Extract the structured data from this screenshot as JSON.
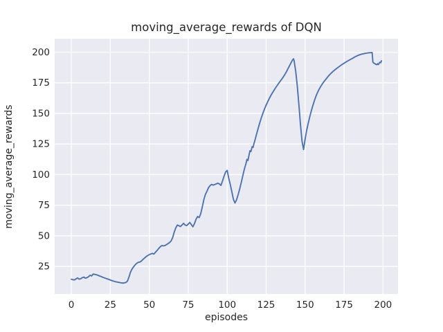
{
  "chart_data": {
    "type": "line",
    "title": "moving_average_rewards of DQN",
    "xlabel": "episodes",
    "ylabel": "moving_average_rewards",
    "xlim": [
      -10.7,
      209.6
    ],
    "ylim": [
      2.5,
      211
    ],
    "xticks": [
      0,
      25,
      50,
      75,
      100,
      125,
      150,
      175,
      200
    ],
    "yticks": [
      25,
      50,
      75,
      100,
      125,
      150,
      175,
      200
    ],
    "grid": true,
    "legend": "none",
    "style": "seaborn-darkgrid",
    "colors": {
      "line": "#4C72B0",
      "plot_bg": "#EAEAF2",
      "grid": "#FFFFFF",
      "text": "#262626",
      "figure_bg": "#FFFFFF"
    },
    "series": [
      {
        "name": "moving_average_rewards",
        "points": [
          [
            0,
            14.5
          ],
          [
            1,
            14.2
          ],
          [
            2,
            14.0
          ],
          [
            3,
            14.8
          ],
          [
            4,
            15.6
          ],
          [
            5,
            14.6
          ],
          [
            6,
            14.9
          ],
          [
            7,
            15.8
          ],
          [
            8,
            16.3
          ],
          [
            9,
            15.4
          ],
          [
            10,
            15.8
          ],
          [
            11,
            16.6
          ],
          [
            12,
            17.8
          ],
          [
            13,
            17.2
          ],
          [
            14,
            18.8
          ],
          [
            15,
            18.5
          ],
          [
            16,
            18.2
          ],
          [
            17,
            17.8
          ],
          [
            18,
            17.2
          ],
          [
            19,
            16.8
          ],
          [
            20,
            16.2
          ],
          [
            22,
            15.3
          ],
          [
            24,
            14.4
          ],
          [
            26,
            13.4
          ],
          [
            28,
            12.6
          ],
          [
            30,
            12.1
          ],
          [
            32,
            11.6
          ],
          [
            33,
            11.4
          ],
          [
            34,
            11.6
          ],
          [
            35,
            11.9
          ],
          [
            36,
            13.0
          ],
          [
            37,
            16.5
          ],
          [
            38,
            20.5
          ],
          [
            39,
            23.0
          ],
          [
            40,
            24.8
          ],
          [
            41,
            26.4
          ],
          [
            42,
            27.6
          ],
          [
            43,
            28.4
          ],
          [
            44,
            28.6
          ],
          [
            45,
            29.5
          ],
          [
            46,
            30.8
          ],
          [
            47,
            31.9
          ],
          [
            48,
            33.0
          ],
          [
            49,
            33.9
          ],
          [
            50,
            34.6
          ],
          [
            51,
            35.2
          ],
          [
            52,
            35.6
          ],
          [
            53,
            35.1
          ],
          [
            54,
            36.6
          ],
          [
            55,
            38.0
          ],
          [
            56,
            39.6
          ],
          [
            57,
            41.0
          ],
          [
            58,
            42.0
          ],
          [
            59,
            41.8
          ],
          [
            60,
            42.0
          ],
          [
            61,
            42.8
          ],
          [
            62,
            43.6
          ],
          [
            63,
            44.5
          ],
          [
            64,
            45.8
          ],
          [
            65,
            48.5
          ],
          [
            66,
            53.0
          ],
          [
            67,
            56.5
          ],
          [
            68,
            58.8
          ],
          [
            69,
            58.2
          ],
          [
            70,
            57.6
          ],
          [
            71,
            58.8
          ],
          [
            72,
            60.2
          ],
          [
            73,
            58.8
          ],
          [
            74,
            58.4
          ],
          [
            75,
            59.6
          ],
          [
            76,
            60.9
          ],
          [
            77,
            59.2
          ],
          [
            78,
            57.4
          ],
          [
            79,
            60.0
          ],
          [
            80,
            63.5
          ],
          [
            81,
            65.8
          ],
          [
            82,
            64.9
          ],
          [
            83,
            68.0
          ],
          [
            84,
            73.5
          ],
          [
            85,
            79.5
          ],
          [
            86,
            83.8
          ],
          [
            87,
            86.4
          ],
          [
            88,
            89.3
          ],
          [
            89,
            91.0
          ],
          [
            90,
            92.0
          ],
          [
            91,
            91.4
          ],
          [
            92,
            91.9
          ],
          [
            93,
            92.4
          ],
          [
            94,
            93.0
          ],
          [
            95,
            92.4
          ],
          [
            96,
            91.2
          ],
          [
            97,
            94.8
          ],
          [
            98,
            98.8
          ],
          [
            99,
            102.2
          ],
          [
            100,
            103.4
          ],
          [
            101,
            97.0
          ],
          [
            102,
            91.8
          ],
          [
            103,
            85.8
          ],
          [
            104,
            79.8
          ],
          [
            105,
            76.8
          ],
          [
            106,
            79.4
          ],
          [
            107,
            83.6
          ],
          [
            108,
            88.2
          ],
          [
            109,
            93.4
          ],
          [
            110,
            99.0
          ],
          [
            111,
            104.4
          ],
          [
            112,
            108.8
          ],
          [
            112.7,
            112.5
          ],
          [
            113.3,
            111.5
          ],
          [
            114,
            116.0
          ],
          [
            114.6,
            119.5
          ],
          [
            115.2,
            118.8
          ],
          [
            116,
            122.8
          ],
          [
            116.6,
            122.2
          ],
          [
            117,
            124.5
          ],
          [
            118,
            129.0
          ],
          [
            119,
            133.8
          ],
          [
            120,
            138.4
          ],
          [
            121,
            142.8
          ],
          [
            122,
            146.8
          ],
          [
            123,
            150.4
          ],
          [
            124,
            153.8
          ],
          [
            125,
            156.8
          ],
          [
            126,
            159.6
          ],
          [
            127,
            162.2
          ],
          [
            128,
            164.6
          ],
          [
            129,
            166.8
          ],
          [
            130,
            168.8
          ],
          [
            131,
            170.8
          ],
          [
            132,
            172.7
          ],
          [
            133,
            174.5
          ],
          [
            134,
            176.3
          ],
          [
            135,
            178.0
          ],
          [
            136,
            179.8
          ],
          [
            137,
            181.8
          ],
          [
            138,
            184.0
          ],
          [
            139,
            186.5
          ],
          [
            140,
            189.0
          ],
          [
            141,
            191.5
          ],
          [
            142,
            193.8
          ],
          [
            142.6,
            194.6
          ],
          [
            143,
            192.5
          ],
          [
            144,
            184.0
          ],
          [
            145,
            172.0
          ],
          [
            146,
            157.0
          ],
          [
            147,
            141.0
          ],
          [
            148,
            127.5
          ],
          [
            149,
            120.5
          ],
          [
            150,
            129.0
          ],
          [
            151,
            136.2
          ],
          [
            152,
            142.0
          ],
          [
            153,
            147.4
          ],
          [
            154,
            152.2
          ],
          [
            155,
            156.6
          ],
          [
            156,
            160.6
          ],
          [
            157,
            164.2
          ],
          [
            158,
            167.2
          ],
          [
            159,
            169.8
          ],
          [
            160,
            172.0
          ],
          [
            161,
            174.0
          ],
          [
            162,
            175.8
          ],
          [
            163,
            177.4
          ],
          [
            164,
            179.0
          ],
          [
            165,
            180.6
          ],
          [
            166,
            182.0
          ],
          [
            167,
            183.2
          ],
          [
            168,
            184.4
          ],
          [
            169,
            185.5
          ],
          [
            170,
            186.5
          ],
          [
            171,
            187.5
          ],
          [
            172,
            188.4
          ],
          [
            173,
            189.3
          ],
          [
            174,
            190.2
          ],
          [
            175,
            191.0
          ],
          [
            176,
            191.8
          ],
          [
            177,
            192.6
          ],
          [
            178,
            193.3
          ],
          [
            179,
            194.0
          ],
          [
            180,
            194.7
          ],
          [
            181,
            195.4
          ],
          [
            182,
            196.2
          ],
          [
            183,
            196.8
          ],
          [
            184,
            197.4
          ],
          [
            185,
            197.9
          ],
          [
            186,
            198.3
          ],
          [
            187,
            198.6
          ],
          [
            188,
            198.9
          ],
          [
            189,
            199.2
          ],
          [
            190,
            199.4
          ],
          [
            191,
            199.5
          ],
          [
            192,
            199.6
          ],
          [
            193,
            199.7
          ],
          [
            193.5,
            191.8
          ],
          [
            194,
            191.2
          ],
          [
            195,
            190.4
          ],
          [
            196,
            189.8
          ],
          [
            196.5,
            190.6
          ],
          [
            197,
            189.9
          ],
          [
            197.5,
            191.0
          ],
          [
            198,
            191.8
          ],
          [
            198.5,
            191.4
          ],
          [
            199,
            193.0
          ]
        ]
      }
    ]
  }
}
